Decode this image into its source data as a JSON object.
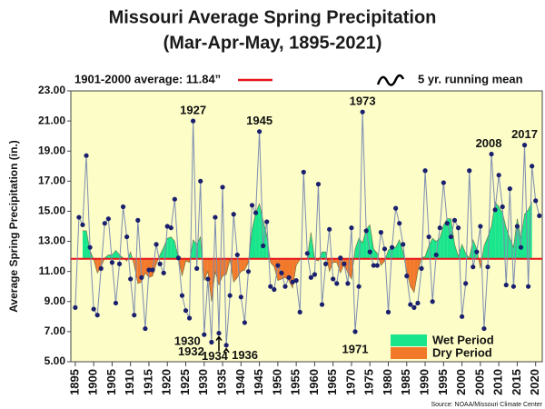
{
  "chart_data": {
    "type": "line",
    "title": "Missouri Average Spring Precipitation",
    "subtitle": "(Mar-Apr-May, 1895-2021)",
    "y_label": "Average Spring Precipitation (in.)",
    "source": "Source: NOAA/Missouri Climate Center",
    "x": [
      1895,
      1896,
      1897,
      1898,
      1899,
      1900,
      1901,
      1902,
      1903,
      1904,
      1905,
      1906,
      1907,
      1908,
      1909,
      1910,
      1911,
      1912,
      1913,
      1914,
      1915,
      1916,
      1917,
      1918,
      1919,
      1920,
      1921,
      1922,
      1923,
      1924,
      1925,
      1926,
      1927,
      1928,
      1929,
      1930,
      1931,
      1932,
      1933,
      1934,
      1935,
      1936,
      1937,
      1938,
      1939,
      1940,
      1941,
      1942,
      1943,
      1944,
      1945,
      1946,
      1947,
      1948,
      1949,
      1950,
      1951,
      1952,
      1953,
      1954,
      1955,
      1956,
      1957,
      1958,
      1959,
      1960,
      1961,
      1962,
      1963,
      1964,
      1965,
      1966,
      1967,
      1968,
      1969,
      1970,
      1971,
      1972,
      1973,
      1974,
      1975,
      1976,
      1977,
      1978,
      1979,
      1980,
      1981,
      1982,
      1983,
      1984,
      1985,
      1986,
      1987,
      1988,
      1989,
      1990,
      1991,
      1992,
      1993,
      1994,
      1995,
      1996,
      1997,
      1998,
      1999,
      2000,
      2001,
      2002,
      2003,
      2004,
      2005,
      2006,
      2007,
      2008,
      2009,
      2010,
      2011,
      2012,
      2013,
      2014,
      2015,
      2016,
      2017,
      2018,
      2019,
      2020,
      2021
    ],
    "values": [
      8.6,
      14.6,
      14.1,
      18.7,
      12.6,
      8.5,
      8.1,
      11.2,
      14.2,
      14.5,
      11.6,
      8.9,
      11.5,
      15.3,
      13.3,
      10.5,
      8.1,
      14.4,
      10.6,
      7.2,
      11.1,
      11.1,
      12.8,
      11.5,
      10.9,
      14.0,
      13.9,
      15.8,
      11.9,
      9.4,
      8.4,
      7.9,
      21.0,
      11.2,
      17.0,
      6.8,
      10.5,
      6.3,
      14.6,
      6.9,
      16.6,
      6.1,
      9.4,
      14.8,
      12.1,
      9.3,
      7.6,
      11.0,
      15.4,
      14.9,
      20.3,
      12.7,
      14.3,
      10.0,
      9.8,
      11.4,
      10.9,
      10.0,
      10.6,
      10.3,
      10.4,
      8.3,
      17.6,
      12.2,
      10.6,
      10.8,
      16.8,
      8.8,
      11.5,
      13.8,
      10.5,
      10.2,
      11.9,
      11.5,
      10.2,
      13.9,
      7.0,
      10.0,
      21.6,
      13.7,
      12.3,
      11.4,
      11.4,
      13.6,
      12.5,
      8.3,
      12.6,
      15.2,
      14.2,
      12.8,
      10.7,
      8.8,
      8.6,
      8.9,
      11.2,
      17.7,
      13.3,
      9.0,
      12.1,
      13.9,
      16.9,
      14.2,
      13.3,
      14.4,
      13.9,
      8.0,
      10.2,
      17.7,
      11.3,
      12.3,
      14.0,
      7.2,
      11.3,
      18.8,
      15.1,
      17.4,
      15.3,
      10.1,
      16.5,
      10.0,
      14.0,
      12.6,
      19.4,
      10.0,
      18.0,
      15.7,
      14.7
    ],
    "color": "#1a1f6e",
    "line_color": "#7d8db0",
    "running_mean": {
      "name": "5 yr. running mean",
      "values": [
        null,
        null,
        13.7,
        13.7,
        12.4,
        11.8,
        10.9,
        11.3,
        11.9,
        12.1,
        12.1,
        12.4,
        12.1,
        11.9,
        11.7,
        12.3,
        11.4,
        10.2,
        10.3,
        10.9,
        10.6,
        10.7,
        11.5,
        12.1,
        12.6,
        13.2,
        13.3,
        13.0,
        11.9,
        10.7,
        11.7,
        11.6,
        13.1,
        12.8,
        13.3,
        10.4,
        11.0,
        9.0,
        11.0,
        10.1,
        10.7,
        10.8,
        11.8,
        10.3,
        10.6,
        11.0,
        11.1,
        11.6,
        13.8,
        14.9,
        15.5,
        14.4,
        13.4,
        11.6,
        11.3,
        10.4,
        10.5,
        10.6,
        10.4,
        9.9,
        11.4,
        11.8,
        11.8,
        11.9,
        13.6,
        11.8,
        11.7,
        12.3,
        12.3,
        11.0,
        11.6,
        11.6,
        10.9,
        11.5,
        10.9,
        10.5,
        12.5,
        13.2,
        12.9,
        13.8,
        14.1,
        12.5,
        12.2,
        11.4,
        11.7,
        12.4,
        12.6,
        12.6,
        13.1,
        12.3,
        11.0,
        10.0,
        9.6,
        11.0,
        11.9,
        12.0,
        12.7,
        13.2,
        13.0,
        13.2,
        14.1,
        14.5,
        14.5,
        12.8,
        12.0,
        12.8,
        12.2,
        11.9,
        13.1,
        12.5,
        11.2,
        12.7,
        13.3,
        14.0,
        15.6,
        15.3,
        14.9,
        13.9,
        13.2,
        12.6,
        14.5,
        13.2,
        14.8,
        15.1,
        15.6,
        null,
        null
      ]
    },
    "average": {
      "label": "1901-2000 average: 11.84”",
      "value": 11.84,
      "color": "#e8141c"
    },
    "wet": {
      "name": "Wet Period",
      "color": "#19e68c"
    },
    "dry": {
      "name": "Dry Period",
      "color": "#f2782a"
    },
    "annotations": [
      {
        "label": "1927",
        "x": 1927
      },
      {
        "label": "1930",
        "x": 1930
      },
      {
        "label": "1932",
        "x": 1932
      },
      {
        "label": "1934",
        "x": 1934
      },
      {
        "label": "1936",
        "x": 1936
      },
      {
        "label": "1945",
        "x": 1945
      },
      {
        "label": "1971",
        "x": 1971
      },
      {
        "label": "1973",
        "x": 1973
      },
      {
        "label": "2008",
        "x": 2008
      },
      {
        "label": "2017",
        "x": 2017
      }
    ],
    "xlim": [
      1893.8,
      2021.8
    ],
    "xticks": [
      1895,
      1900,
      1905,
      1910,
      1915,
      1920,
      1925,
      1930,
      1935,
      1940,
      1945,
      1950,
      1955,
      1960,
      1965,
      1970,
      1975,
      1980,
      1985,
      1990,
      1995,
      2000,
      2005,
      2010,
      2015,
      2020
    ],
    "ylim": [
      5,
      23
    ],
    "yticks": [
      {
        "value": 5,
        "label": "5.00"
      },
      {
        "value": 7,
        "label": "7.00"
      },
      {
        "value": 9,
        "label": "9.00"
      },
      {
        "value": 11,
        "label": "11.00"
      },
      {
        "value": 13,
        "label": "13.00"
      },
      {
        "value": 15,
        "label": "15.00"
      },
      {
        "value": 17,
        "label": "17.00"
      },
      {
        "value": 19,
        "label": "19.00"
      },
      {
        "value": 21,
        "label": "21.00"
      },
      {
        "value": 23,
        "label": "23.00"
      }
    ],
    "plot_background": "#fdfdc8"
  }
}
